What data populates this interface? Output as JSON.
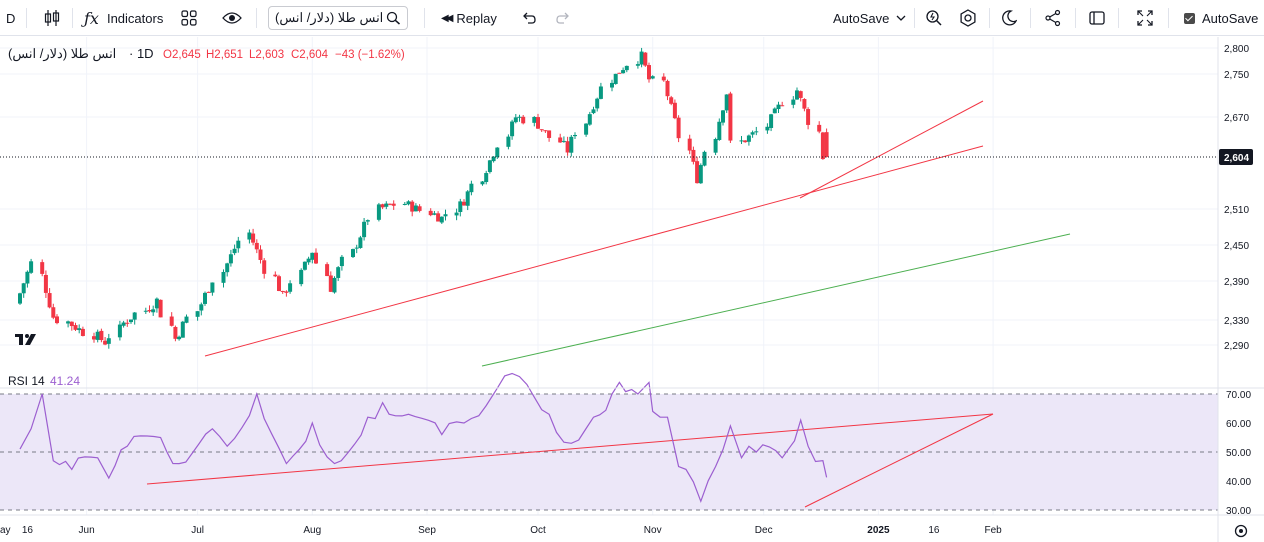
{
  "toolbar": {
    "left_clip": "D",
    "indicators_label": "Indicators",
    "symbol_search": "انس طلا (دلار/ انس)",
    "replay_label": "Replay",
    "autosave_dropdown": "AutoSave",
    "autosave_checkbox": "AutoSave"
  },
  "legend": {
    "title": "انس طلا (دلار/ انس)",
    "interval": "· 1D",
    "open": "O2,645",
    "high": "H2,651",
    "low": "L2,603",
    "close": "C2,604",
    "change": "−43 (−1.62%)"
  },
  "rsi_legend": {
    "name": "RSI 14",
    "value": "41.24"
  },
  "colors": {
    "up": "#089981",
    "down": "#f23645",
    "trendline": "#f23645",
    "channel": "#4caf50",
    "rsi_line": "#9c5fd0",
    "rsi_band": "#ece7f8",
    "price_badge": "#131722"
  },
  "chart_data": [
    {
      "type": "candlestick",
      "symbol": "انس طلا (دلار/ انس)",
      "interval": "1D",
      "y_ticks": [
        "2,800",
        "2,750",
        "2,670",
        "2,604",
        "2,510",
        "2,450",
        "2,390",
        "2,330",
        "2,290"
      ],
      "y_tick_values": [
        2800,
        2750,
        2670,
        2604,
        2510,
        2450,
        2390,
        2330,
        2290
      ],
      "current_price": "2,604",
      "x_ticks": [
        "ay",
        "16",
        "Jun",
        "Jul",
        "Aug",
        "Sep",
        "Oct",
        "Nov",
        "Dec",
        "2025",
        "16",
        "Feb"
      ],
      "anchors": [
        [
          "2024-05-14",
          2355
        ],
        [
          "2024-05-20",
          2420
        ],
        [
          "2024-05-24",
          2335
        ],
        [
          "2024-06-07",
          2295
        ],
        [
          "2024-06-12",
          2325
        ],
        [
          "2024-06-21",
          2360
        ],
        [
          "2024-06-26",
          2300
        ],
        [
          "2024-07-03",
          2355
        ],
        [
          "2024-07-16",
          2470
        ],
        [
          "2024-07-25",
          2365
        ],
        [
          "2024-08-02",
          2440
        ],
        [
          "2024-08-07",
          2380
        ],
        [
          "2024-08-20",
          2510
        ],
        [
          "2024-08-27",
          2520
        ],
        [
          "2024-09-06",
          2495
        ],
        [
          "2024-09-12",
          2525
        ],
        [
          "2024-09-26",
          2670
        ],
        [
          "2024-10-01",
          2665
        ],
        [
          "2024-10-10",
          2615
        ],
        [
          "2024-10-22",
          2740
        ],
        [
          "2024-10-30",
          2785
        ],
        [
          "2024-11-01",
          2740
        ],
        [
          "2024-11-05",
          2735
        ],
        [
          "2024-11-14",
          2565
        ],
        [
          "2024-11-22",
          2715
        ],
        [
          "2024-11-25",
          2625
        ],
        [
          "2024-12-02",
          2645
        ],
        [
          "2024-12-11",
          2720
        ],
        [
          "2024-12-17",
          2645
        ],
        [
          "2024-12-18",
          2604
        ]
      ],
      "last_candle": {
        "date": "2024-12-18",
        "open": 2645,
        "high": 2651,
        "low": 2603,
        "close": 2604
      }
    },
    {
      "type": "line",
      "name": "RSI 14",
      "y_ticks": [
        "70.00",
        "60.00",
        "50.00",
        "40.00",
        "30.00"
      ],
      "y_tick_values": [
        70,
        60,
        50,
        40,
        30
      ],
      "overbought": 70,
      "oversold": 30,
      "middle": 50,
      "last_value": 41.24,
      "points": [
        [
          "2024-05-14",
          51
        ],
        [
          "2024-05-17",
          58
        ],
        [
          "2024-05-20",
          70
        ],
        [
          "2024-05-23",
          47
        ],
        [
          "2024-05-28",
          44
        ],
        [
          "2024-06-04",
          48
        ],
        [
          "2024-06-07",
          41
        ],
        [
          "2024-06-12",
          52
        ],
        [
          "2024-06-21",
          55
        ],
        [
          "2024-06-26",
          46
        ],
        [
          "2024-07-05",
          58
        ],
        [
          "2024-07-09",
          52
        ],
        [
          "2024-07-17",
          70
        ],
        [
          "2024-07-25",
          46
        ],
        [
          "2024-08-01",
          60
        ],
        [
          "2024-08-07",
          46
        ],
        [
          "2024-08-16",
          62
        ],
        [
          "2024-08-20",
          67
        ],
        [
          "2024-08-27",
          63
        ],
        [
          "2024-09-05",
          56
        ],
        [
          "2024-09-11",
          60
        ],
        [
          "2024-09-17",
          66
        ],
        [
          "2024-09-20",
          72
        ],
        [
          "2024-09-26",
          76
        ],
        [
          "2024-10-04",
          63
        ],
        [
          "2024-10-10",
          53
        ],
        [
          "2024-10-16",
          62
        ],
        [
          "2024-10-21",
          70
        ],
        [
          "2024-10-23",
          74
        ],
        [
          "2024-10-28",
          70
        ],
        [
          "2024-10-31",
          74
        ],
        [
          "2024-11-01",
          64
        ],
        [
          "2024-11-05",
          62
        ],
        [
          "2024-11-08",
          45
        ],
        [
          "2024-11-14",
          33
        ],
        [
          "2024-11-18",
          45
        ],
        [
          "2024-11-22",
          59
        ],
        [
          "2024-11-25",
          48
        ],
        [
          "2024-11-29",
          50
        ],
        [
          "2024-12-06",
          48
        ],
        [
          "2024-12-11",
          61
        ],
        [
          "2024-12-13",
          52
        ],
        [
          "2024-12-17",
          47
        ],
        [
          "2024-12-18",
          41.24
        ]
      ]
    }
  ]
}
